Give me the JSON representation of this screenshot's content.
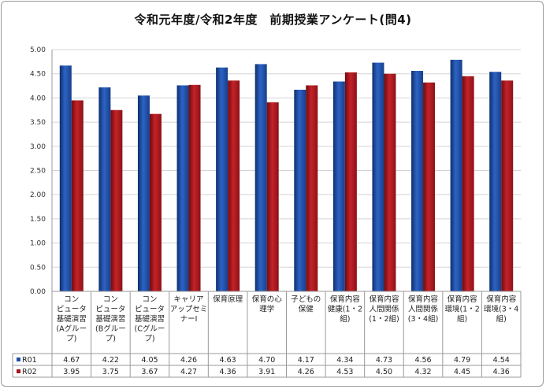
{
  "chart_data": {
    "type": "bar",
    "title": "令和元年度/令和2年度　前期授業アンケート(問4)",
    "ylim": [
      0,
      5
    ],
    "yticks": [
      "0.00",
      "0.50",
      "1.00",
      "1.50",
      "2.00",
      "2.50",
      "3.00",
      "3.50",
      "4.00",
      "4.50",
      "5.00"
    ],
    "grid": true,
    "legend": "bottom-table",
    "categories": [
      [
        "コン",
        "ピュータ",
        "基礎演習",
        "(Aグルー",
        "プ)"
      ],
      [
        "コン",
        "ピュータ",
        "基礎演習",
        "(Bグルー",
        "プ)"
      ],
      [
        "コン",
        "ピュータ",
        "基礎演習",
        "(Cグルー",
        "プ)"
      ],
      [
        "キャリア",
        "アップセミ",
        "ナーⅠ"
      ],
      [
        "保育原理"
      ],
      [
        "保育の心",
        "理学"
      ],
      [
        "子どもの",
        "保健"
      ],
      [
        "保育内容",
        "健康(1・2",
        "組)"
      ],
      [
        "保育内容",
        "人間関係",
        "(1・2組)"
      ],
      [
        "保育内容",
        "人間関係",
        "(3・4組)"
      ],
      [
        "保育内容",
        "環境(1・2",
        "組)"
      ],
      [
        "保育内容",
        "環境(3・4",
        "組)"
      ]
    ],
    "series": [
      {
        "name": "R01",
        "color": "#1f4fa3",
        "values": [
          4.67,
          4.22,
          4.05,
          4.26,
          4.63,
          4.7,
          4.17,
          4.34,
          4.73,
          4.56,
          4.79,
          4.54
        ],
        "labels": [
          "4.67",
          "4.22",
          "4.05",
          "4.26",
          "4.63",
          "4.70",
          "4.17",
          "4.34",
          "4.73",
          "4.56",
          "4.79",
          "4.54"
        ]
      },
      {
        "name": "R02",
        "color": "#a5161d",
        "values": [
          3.95,
          3.75,
          3.67,
          4.27,
          4.36,
          3.91,
          4.26,
          4.53,
          4.5,
          4.32,
          4.45,
          4.36
        ],
        "labels": [
          "3.95",
          "3.75",
          "3.67",
          "4.27",
          "4.36",
          "3.91",
          "4.26",
          "4.53",
          "4.50",
          "4.32",
          "4.45",
          "4.36"
        ]
      }
    ]
  }
}
